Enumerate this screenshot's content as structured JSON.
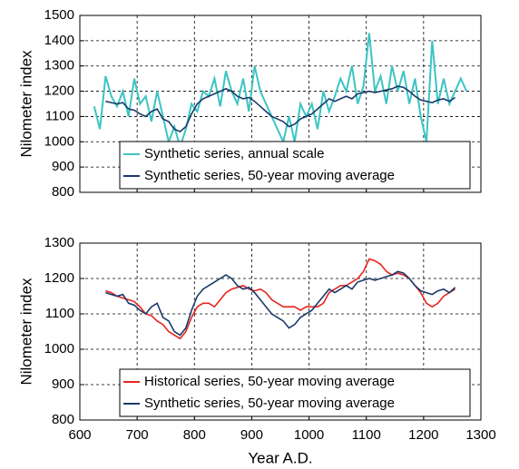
{
  "chart_data": [
    {
      "type": "line",
      "ylabel": "Nilometer index",
      "xlim": [
        600,
        1300
      ],
      "xticks": [
        600,
        700,
        800,
        900,
        1000,
        1100,
        1200,
        1300
      ],
      "xtick_labels": false,
      "ylim": [
        800,
        1500
      ],
      "yticks": [
        800,
        900,
        1000,
        1100,
        1200,
        1300,
        1400,
        1500
      ],
      "grid": true,
      "legend": "lower center",
      "series": [
        {
          "name": "Synthetic series, annual scale",
          "color": "#3cc4c4",
          "x": [
            625,
            635,
            645,
            655,
            665,
            675,
            685,
            695,
            705,
            715,
            725,
            735,
            745,
            755,
            765,
            775,
            785,
            795,
            805,
            815,
            825,
            835,
            845,
            855,
            865,
            875,
            885,
            895,
            905,
            915,
            925,
            935,
            945,
            955,
            965,
            975,
            985,
            995,
            1005,
            1015,
            1025,
            1035,
            1045,
            1055,
            1065,
            1075,
            1085,
            1095,
            1105,
            1115,
            1125,
            1135,
            1145,
            1155,
            1165,
            1175,
            1185,
            1195,
            1205,
            1215,
            1225,
            1235,
            1245,
            1255,
            1265,
            1275
          ],
          "values": [
            1140,
            1050,
            1260,
            1180,
            1140,
            1200,
            1100,
            1250,
            1150,
            1180,
            1080,
            1200,
            1100,
            1000,
            1060,
            980,
            1050,
            1150,
            1120,
            1200,
            1180,
            1250,
            1140,
            1280,
            1200,
            1150,
            1250,
            1120,
            1300,
            1200,
            1150,
            1100,
            1050,
            1000,
            1100,
            1000,
            1150,
            1100,
            1150,
            1050,
            1200,
            1120,
            1180,
            1250,
            1200,
            1300,
            1150,
            1220,
            1430,
            1200,
            1260,
            1150,
            1300,
            1200,
            1280,
            1150,
            1250,
            1100,
            1000,
            1400,
            1150,
            1250,
            1150,
            1200,
            1250,
            1200
          ]
        },
        {
          "name": "Synthetic series, 50-year moving average",
          "color": "#1a3a6a",
          "x": [
            645,
            655,
            665,
            675,
            685,
            695,
            705,
            715,
            725,
            735,
            745,
            755,
            765,
            775,
            785,
            795,
            805,
            815,
            825,
            835,
            845,
            855,
            865,
            875,
            885,
            895,
            905,
            915,
            925,
            935,
            945,
            955,
            965,
            975,
            985,
            995,
            1005,
            1015,
            1025,
            1035,
            1045,
            1055,
            1065,
            1075,
            1085,
            1095,
            1105,
            1115,
            1125,
            1135,
            1145,
            1155,
            1165,
            1175,
            1185,
            1195,
            1205,
            1215,
            1225,
            1235,
            1245,
            1255
          ],
          "values": [
            1160,
            1155,
            1150,
            1155,
            1130,
            1125,
            1110,
            1100,
            1120,
            1130,
            1090,
            1080,
            1050,
            1040,
            1060,
            1110,
            1150,
            1170,
            1180,
            1190,
            1200,
            1210,
            1200,
            1180,
            1170,
            1175,
            1160,
            1140,
            1120,
            1100,
            1090,
            1080,
            1060,
            1070,
            1090,
            1100,
            1110,
            1130,
            1150,
            1170,
            1160,
            1170,
            1180,
            1170,
            1190,
            1195,
            1200,
            1195,
            1200,
            1205,
            1210,
            1220,
            1215,
            1200,
            1180,
            1165,
            1160,
            1155,
            1165,
            1170,
            1160,
            1175
          ]
        }
      ]
    },
    {
      "type": "line",
      "ylabel": "Nilometer index",
      "xlabel": "Year A.D.",
      "xlim": [
        600,
        1300
      ],
      "xticks": [
        600,
        700,
        800,
        900,
        1000,
        1100,
        1200,
        1300
      ],
      "xtick_labels": true,
      "ylim": [
        800,
        1300
      ],
      "yticks": [
        800,
        900,
        1000,
        1100,
        1200,
        1300
      ],
      "grid": true,
      "legend": "lower center",
      "series": [
        {
          "name": "Historical series, 50-year moving average",
          "color": "#e8241e",
          "x": [
            645,
            655,
            665,
            675,
            685,
            695,
            705,
            715,
            725,
            735,
            745,
            755,
            765,
            775,
            785,
            795,
            805,
            815,
            825,
            835,
            845,
            855,
            865,
            875,
            885,
            895,
            905,
            915,
            925,
            935,
            945,
            955,
            965,
            975,
            985,
            995,
            1005,
            1015,
            1025,
            1035,
            1045,
            1055,
            1065,
            1075,
            1085,
            1095,
            1105,
            1115,
            1125,
            1135,
            1145,
            1155,
            1165,
            1175,
            1185,
            1195,
            1205,
            1215,
            1225,
            1235,
            1245,
            1255
          ],
          "values": [
            1165,
            1160,
            1150,
            1145,
            1140,
            1135,
            1120,
            1100,
            1095,
            1080,
            1070,
            1050,
            1040,
            1030,
            1050,
            1090,
            1120,
            1130,
            1130,
            1120,
            1140,
            1160,
            1170,
            1175,
            1180,
            1170,
            1165,
            1170,
            1160,
            1140,
            1130,
            1120,
            1120,
            1120,
            1110,
            1120,
            1120,
            1120,
            1130,
            1160,
            1170,
            1180,
            1180,
            1190,
            1200,
            1220,
            1255,
            1250,
            1240,
            1220,
            1210,
            1215,
            1210,
            1200,
            1180,
            1160,
            1130,
            1120,
            1130,
            1150,
            1160,
            1170
          ]
        },
        {
          "name": "Synthetic series, 50-year moving average",
          "color": "#1a3a6a",
          "x": [
            645,
            655,
            665,
            675,
            685,
            695,
            705,
            715,
            725,
            735,
            745,
            755,
            765,
            775,
            785,
            795,
            805,
            815,
            825,
            835,
            845,
            855,
            865,
            875,
            885,
            895,
            905,
            915,
            925,
            935,
            945,
            955,
            965,
            975,
            985,
            995,
            1005,
            1015,
            1025,
            1035,
            1045,
            1055,
            1065,
            1075,
            1085,
            1095,
            1105,
            1115,
            1125,
            1135,
            1145,
            1155,
            1165,
            1175,
            1185,
            1195,
            1205,
            1215,
            1225,
            1235,
            1245,
            1255
          ],
          "values": [
            1160,
            1155,
            1150,
            1155,
            1130,
            1125,
            1110,
            1100,
            1120,
            1130,
            1090,
            1080,
            1050,
            1040,
            1060,
            1110,
            1150,
            1170,
            1180,
            1190,
            1200,
            1210,
            1200,
            1180,
            1170,
            1175,
            1160,
            1140,
            1120,
            1100,
            1090,
            1080,
            1060,
            1070,
            1090,
            1100,
            1110,
            1130,
            1150,
            1170,
            1160,
            1170,
            1180,
            1170,
            1190,
            1195,
            1200,
            1195,
            1200,
            1205,
            1210,
            1220,
            1215,
            1200,
            1180,
            1165,
            1160,
            1155,
            1165,
            1170,
            1160,
            1175
          ]
        }
      ]
    }
  ]
}
